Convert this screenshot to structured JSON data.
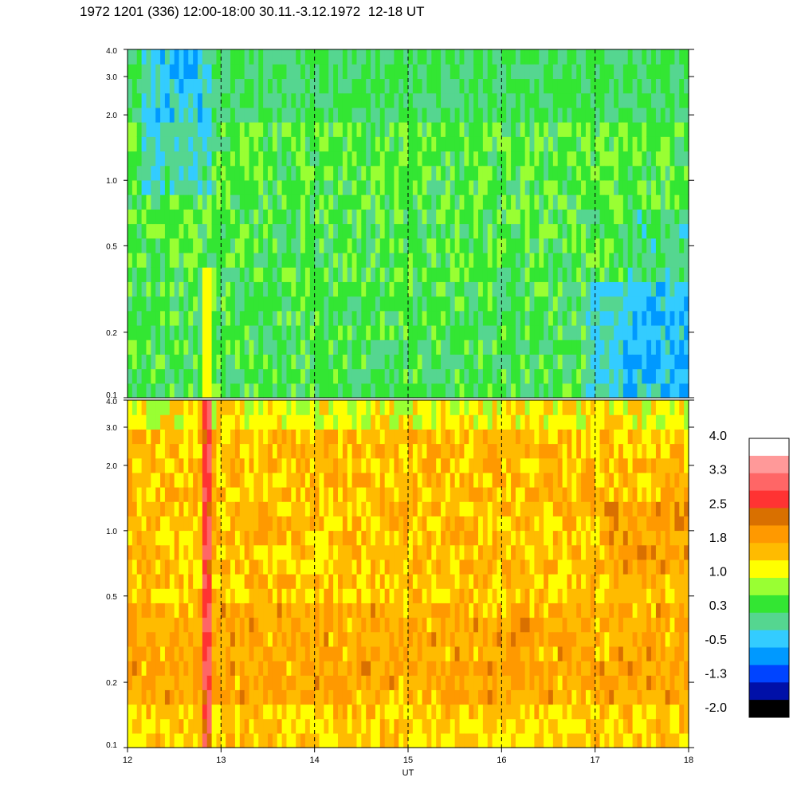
{
  "title": "1972 1201 (336) 12:00-18:00 30.11.-3.12.1972  12-18 UT",
  "colors": {
    "scale": [
      "#000000",
      "#0010a8",
      "#0044ff",
      "#0099ff",
      "#33ccff",
      "#55d690",
      "#33e633",
      "#99ff33",
      "#ffff00",
      "#ffbb00",
      "#ff9900",
      "#d97000",
      "#ff3333",
      "#ff6666",
      "#ff9999",
      "#ffffff"
    ]
  },
  "chart_data": [
    {
      "type": "heatmap",
      "panel": "upper",
      "x_range": [
        12,
        18
      ],
      "y_range": [
        0.1,
        4.0
      ],
      "y_scale": "log",
      "x_ticks": [
        12,
        13,
        14,
        15,
        16,
        17,
        18
      ],
      "y_tick_labels": [
        "0.1",
        "0.2",
        "0.5",
        "1.0",
        "2.0",
        "3.0",
        "4.0"
      ],
      "dominant_colors": [
        "green",
        "light-green",
        "cyan",
        "blue"
      ],
      "vertical_dashed_lines_x": [
        13,
        14,
        15,
        16,
        17
      ],
      "features": "orange/yellow band near 12.85 UT below 0.4; blue patches 12.2-12.9 UT above 0.8; cyan dominant after 17 UT below 0.3"
    },
    {
      "type": "heatmap",
      "panel": "lower",
      "x_range": [
        12,
        18
      ],
      "y_range": [
        0.1,
        4.0
      ],
      "y_scale": "log",
      "x_ticks": [
        12,
        13,
        14,
        15,
        16,
        17,
        18
      ],
      "x_tick_labels": [
        "12",
        "13",
        "14",
        "15",
        "16",
        "17",
        "18"
      ],
      "xlabel": "UT",
      "y_tick_labels": [
        "0.1",
        "0.2",
        "0.5",
        "1.0",
        "2.0",
        "3.0",
        "4.0"
      ],
      "dominant_colors": [
        "orange",
        "yellow",
        "light-green"
      ],
      "vertical_dashed_lines_x": [
        13,
        14,
        15,
        16,
        17
      ],
      "features": "red/pink band near 12.85 UT; yellow near top edge; darker orange band 17-18 UT around 1.0"
    }
  ],
  "colorbar": {
    "labels": [
      "4.0",
      "3.3",
      "2.5",
      "1.8",
      "1.0",
      "0.3",
      "-0.5",
      "-1.3",
      "-2.0"
    ]
  }
}
